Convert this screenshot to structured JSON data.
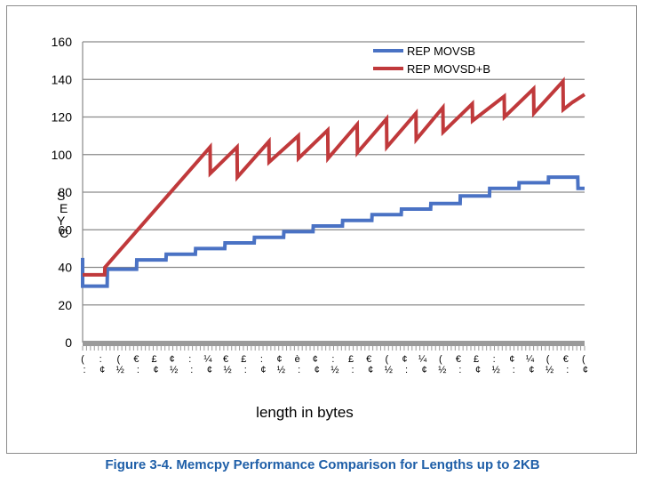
{
  "caption": "Figure 3-4.  Memcpy Performance Comparison for Lengths up to 2KB",
  "chart_data": {
    "type": "line",
    "title": "",
    "xlabel": "length in bytes",
    "ylabel": "",
    "xlim": [
      0,
      2048
    ],
    "ylim": [
      0,
      160
    ],
    "yticks": [
      0,
      20,
      40,
      60,
      80,
      100,
      120,
      140,
      160
    ],
    "grid": true,
    "legend_position": "top-right",
    "series": [
      {
        "name": "REP MOVSB",
        "color": "#4a72c4",
        "x": [
          0,
          0,
          1,
          100,
          101,
          220,
          221,
          340,
          341,
          460,
          461,
          580,
          581,
          700,
          701,
          820,
          821,
          940,
          941,
          1060,
          1061,
          1180,
          1181,
          1300,
          1301,
          1420,
          1421,
          1540,
          1541,
          1660,
          1661,
          1780,
          1781,
          1900,
          1901,
          2020,
          2021,
          2048
        ],
        "y": [
          45,
          30,
          30,
          30,
          39,
          39,
          44,
          44,
          47,
          47,
          50,
          50,
          53,
          53,
          56,
          56,
          59,
          59,
          62,
          62,
          65,
          65,
          68,
          68,
          71,
          71,
          74,
          74,
          78,
          78,
          82,
          82,
          85,
          85,
          88,
          88,
          82,
          82
        ]
      },
      {
        "name": "REP MOVSD+B",
        "color": "#c0393b",
        "x": [
          0,
          90,
          91,
          520,
          521,
          630,
          631,
          760,
          761,
          880,
          881,
          1000,
          1001,
          1120,
          1121,
          1240,
          1241,
          1360,
          1361,
          1470,
          1471,
          1590,
          1591,
          1720,
          1721,
          1840,
          1841,
          1960,
          1961,
          2000,
          2001,
          2048
        ],
        "y": [
          36,
          36,
          40,
          104,
          90,
          104,
          88,
          107,
          96,
          110,
          98,
          113,
          98,
          116,
          101,
          119,
          104,
          122,
          108,
          125,
          112,
          127,
          118,
          131,
          120,
          135,
          122,
          139,
          124,
          128,
          128,
          132
        ]
      }
    ]
  }
}
